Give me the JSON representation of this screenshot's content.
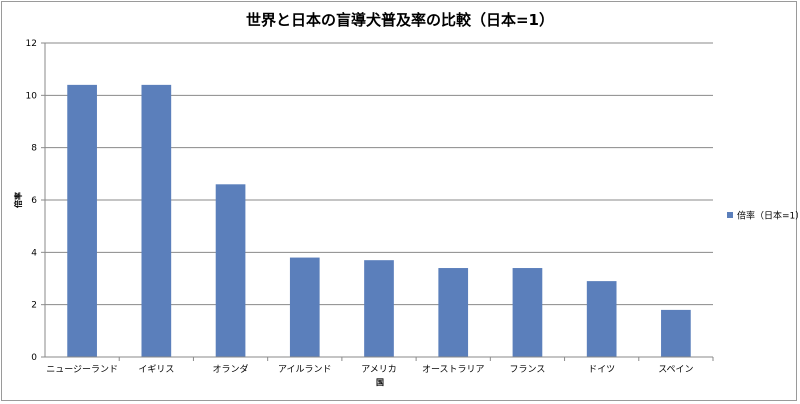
{
  "chart_data": {
    "type": "bar",
    "title": "世界と日本の盲導犬普及率の比較（日本=1）",
    "xlabel": "国",
    "ylabel": "倍率",
    "ylim": [
      0,
      12
    ],
    "yticks": [
      0,
      2,
      4,
      6,
      8,
      10,
      12
    ],
    "grid": true,
    "legend_position": "right",
    "categories": [
      "ニュージーランド",
      "イギリス",
      "オランダ",
      "アイルランド",
      "アメリカ",
      "オーストラリア",
      "フランス",
      "ドイツ",
      "スペイン"
    ],
    "series": [
      {
        "name": "倍率（日本=1）",
        "color": "#5b7fbb",
        "values": [
          10.4,
          10.4,
          6.6,
          3.8,
          3.7,
          3.4,
          3.4,
          2.9,
          1.8
        ]
      }
    ]
  }
}
